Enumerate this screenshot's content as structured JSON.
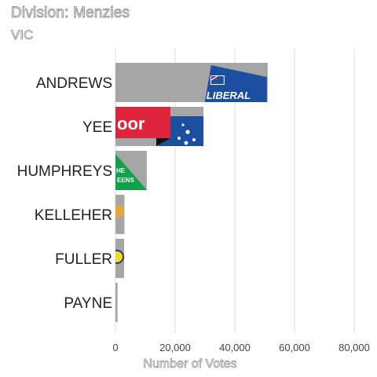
{
  "header": {
    "title": "Division: Menzies",
    "subtitle": "VIC"
  },
  "colors": {
    "bar": "#a6a6a6",
    "grid": "#e3e3e3",
    "liberal_blue": "#1c4fa0",
    "labor_red": "#e0243b",
    "greens_green": "#12a04a",
    "yellow_party": "#f2dc1e",
    "orange_party": "#e8a53a"
  },
  "logo_text": {
    "liberal": "LIBERAL",
    "labor": "oor",
    "greens": "HE EENS"
  },
  "chart_data": {
    "type": "bar",
    "orientation": "horizontal",
    "title": "Division: Menzies",
    "subtitle": "VIC",
    "xlabel": "Number of Votes",
    "ylabel": "",
    "categories": [
      "ANDREWS",
      "YEE",
      "HUMPHREYS",
      "KELLEHER",
      "FULLER",
      "PAYNE"
    ],
    "values": [
      51000,
      29500,
      10500,
      3000,
      2900,
      700
    ],
    "xlim": [
      0,
      85000
    ],
    "xticks": [
      0,
      20000,
      40000,
      60000,
      80000
    ],
    "xtick_labels": [
      "0",
      "20,000",
      "40,000",
      "60,000",
      "80,000"
    ],
    "grid": "vertical",
    "legend": "none",
    "bar_logos": [
      "liberal",
      "labor",
      "greens",
      "orange-party",
      "yellow-party",
      "none"
    ]
  }
}
